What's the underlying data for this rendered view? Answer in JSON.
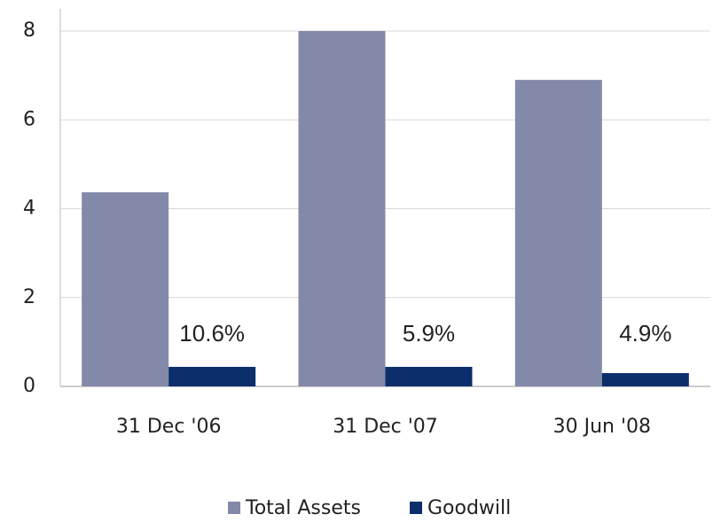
{
  "chart_data": {
    "type": "bar",
    "categories": [
      "31 Dec '06",
      "31 Dec '07",
      "30 Jun '08"
    ],
    "series": [
      {
        "name": "Total Assets",
        "color": "#8389a8",
        "values": [
          4.37,
          8.0,
          6.9
        ]
      },
      {
        "name": "Goodwill",
        "color": "#0c2e6b",
        "values": [
          0.44,
          0.44,
          0.3
        ]
      }
    ],
    "annotations": [
      "10.6%",
      "5.9%",
      "4.9%"
    ],
    "ylim": [
      0,
      8
    ],
    "yticks": [
      0,
      2,
      4,
      6,
      8
    ],
    "grid": true,
    "legend": "bottom"
  }
}
